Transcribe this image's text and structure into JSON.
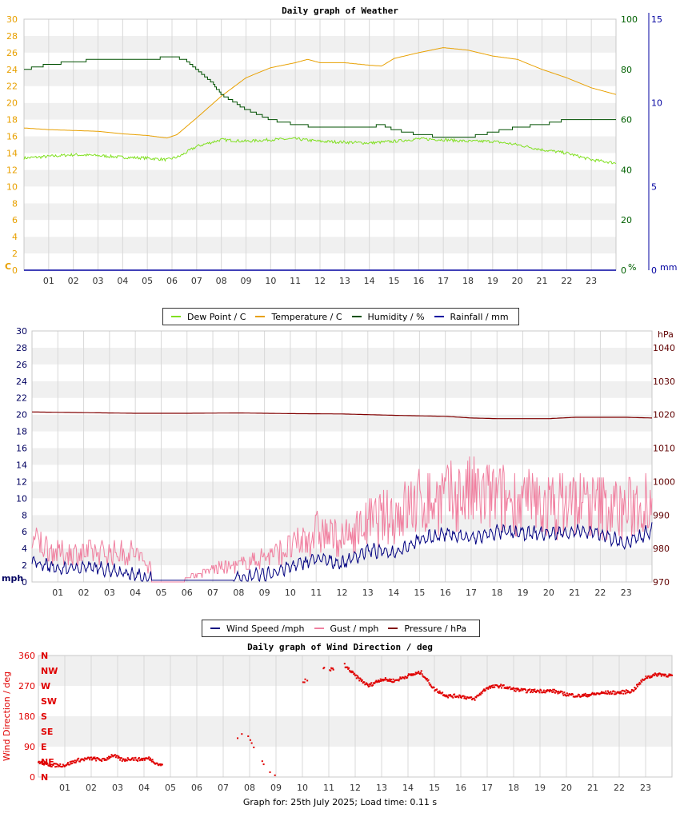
{
  "chart_data": [
    {
      "type": "line",
      "title": "Daily graph of Weather",
      "x_ticks": [
        "01",
        "02",
        "03",
        "04",
        "05",
        "06",
        "07",
        "08",
        "09",
        "10",
        "11",
        "12",
        "13",
        "14",
        "15",
        "16",
        "17",
        "18",
        "19",
        "20",
        "21",
        "22",
        "23"
      ],
      "x_range": [
        0,
        24
      ],
      "left_axis": {
        "unit": "C",
        "ylim": [
          0,
          30
        ],
        "ticks": [
          "0",
          "2",
          "4",
          "6",
          "8",
          "10",
          "12",
          "14",
          "16",
          "18",
          "20",
          "22",
          "24",
          "26",
          "28",
          "30"
        ],
        "color": "#e8a000"
      },
      "right_axis_1": {
        "unit": "%",
        "ylim": [
          0,
          100
        ],
        "ticks": [
          "0",
          "20",
          "40",
          "60",
          "80",
          "100"
        ],
        "color": "#006000"
      },
      "right_axis_2": {
        "unit": "mm",
        "ylim": [
          0,
          15
        ],
        "ticks": [
          "0",
          "5",
          "10",
          "15"
        ],
        "color": "#0000a0"
      },
      "legend": [
        {
          "name": "Dew Point / C",
          "color": "#80e020"
        },
        {
          "name": "Temperature / C",
          "color": "#e8a000"
        },
        {
          "name": "Humidity / %",
          "color": "#005000"
        },
        {
          "name": "Rainfall / mm",
          "color": "#0000a0"
        }
      ],
      "series": [
        {
          "name": "Dew Point / C",
          "axis": "left",
          "x": [
            0,
            1,
            2,
            3,
            4,
            5,
            5.8,
            6.3,
            7,
            8,
            9,
            10,
            11,
            12,
            13,
            14,
            15,
            16,
            17,
            18,
            19,
            20,
            21,
            22,
            23,
            24
          ],
          "values": [
            13.4,
            13.6,
            13.8,
            13.7,
            13.5,
            13.4,
            13.2,
            13.6,
            14.8,
            15.6,
            15.4,
            15.6,
            15.7,
            15.4,
            15.3,
            15.2,
            15.4,
            15.7,
            15.6,
            15.4,
            15.4,
            15.0,
            14.4,
            14.0,
            13.2,
            12.8
          ]
        },
        {
          "name": "Temperature / C",
          "axis": "left",
          "x": [
            0,
            1,
            2,
            3,
            4,
            5,
            5.8,
            6.2,
            7,
            8,
            9,
            10,
            11,
            11.5,
            12,
            13,
            14,
            14.5,
            15,
            16,
            17,
            18,
            19,
            20,
            21,
            22,
            23,
            24
          ],
          "values": [
            17.0,
            16.8,
            16.7,
            16.6,
            16.3,
            16.1,
            15.8,
            16.2,
            18.2,
            20.8,
            23.0,
            24.2,
            24.8,
            25.2,
            24.8,
            24.8,
            24.5,
            24.4,
            25.3,
            26.0,
            26.6,
            26.3,
            25.6,
            25.2,
            24.0,
            23.0,
            21.8,
            21.0
          ]
        },
        {
          "name": "Humidity / %",
          "axis": "right1",
          "x": [
            0,
            1,
            2,
            3,
            4,
            5,
            6,
            6.5,
            7,
            7.5,
            8,
            8.5,
            9,
            9.5,
            10,
            11,
            12,
            13,
            14,
            14.5,
            15,
            15.5,
            16,
            17,
            18,
            18.5,
            19,
            20,
            21,
            22,
            23,
            24
          ],
          "values": [
            80,
            82,
            83,
            84,
            84,
            84,
            85,
            84,
            80,
            76,
            70,
            67,
            64,
            62,
            60,
            58,
            57,
            57,
            57,
            58,
            56,
            55,
            54,
            53,
            53,
            54,
            55,
            57,
            58,
            60,
            60,
            60
          ]
        },
        {
          "name": "Rainfall / mm",
          "axis": "right2",
          "x": [
            0,
            24
          ],
          "values": [
            0,
            0
          ]
        }
      ]
    },
    {
      "type": "line",
      "title": "",
      "x_ticks": [
        "01",
        "02",
        "03",
        "04",
        "05",
        "06",
        "07",
        "08",
        "09",
        "10",
        "11",
        "12",
        "13",
        "14",
        "15",
        "16",
        "17",
        "18",
        "19",
        "20",
        "21",
        "22",
        "23"
      ],
      "x_range": [
        0,
        24
      ],
      "left_axis": {
        "unit": "mph",
        "ylim": [
          0,
          30
        ],
        "ticks": [
          "0",
          "2",
          "4",
          "6",
          "8",
          "10",
          "12",
          "14",
          "16",
          "18",
          "20",
          "22",
          "24",
          "26",
          "28",
          "30"
        ],
        "color": "#000060"
      },
      "right_axis": {
        "unit": "hPa",
        "ylim": [
          970,
          1045
        ],
        "ticks": [
          "970",
          "980",
          "990",
          "1000",
          "1010",
          "1020",
          "1030",
          "1040"
        ],
        "color": "#600000"
      },
      "legend": [
        {
          "name": "Wind Speed /mph",
          "color": "#000080"
        },
        {
          "name": "Gust / mph",
          "color": "#f080a0"
        },
        {
          "name": "Pressure / hPa",
          "color": "#800000"
        }
      ],
      "series": [
        {
          "name": "Wind Speed /mph",
          "axis": "left",
          "x": [
            0,
            1,
            2,
            3,
            4,
            5,
            6,
            7,
            8,
            9,
            10,
            11,
            12,
            13,
            14,
            15,
            16,
            17,
            18,
            19,
            20,
            21,
            22,
            23,
            24
          ],
          "values": [
            2.5,
            1.5,
            1.8,
            1.5,
            0.8,
            0.2,
            0.2,
            0.2,
            0.5,
            0.8,
            1.8,
            2.8,
            2.2,
            3.8,
            3.5,
            5.0,
            5.8,
            5.2,
            6.0,
            5.8,
            5.8,
            6.0,
            5.8,
            4.5,
            6.2
          ]
        },
        {
          "name": "Gust / mph",
          "axis": "left",
          "x": [
            0,
            1,
            2,
            3,
            4,
            5,
            6,
            7,
            8,
            9,
            10,
            11,
            12,
            13,
            14,
            15,
            16,
            17,
            18,
            19,
            20,
            21,
            22,
            23,
            24
          ],
          "values": [
            5,
            3.5,
            3.5,
            3.5,
            3.5,
            0.5,
            0.5,
            1.5,
            2,
            3,
            4,
            6,
            5,
            7,
            8,
            9.5,
            10,
            10.5,
            10,
            9.5,
            9,
            9.5,
            9,
            8.5,
            10.5
          ]
        },
        {
          "name": "Pressure / hPa",
          "axis": "right",
          "x": [
            0,
            2,
            4,
            6,
            8,
            10,
            12,
            14,
            16,
            17,
            18,
            19,
            20,
            21,
            22,
            23,
            24
          ],
          "values": [
            1020.8,
            1020.6,
            1020.4,
            1020.4,
            1020.5,
            1020.3,
            1020.2,
            1019.8,
            1019.5,
            1019.0,
            1018.8,
            1018.8,
            1018.8,
            1019.2,
            1019.2,
            1019.2,
            1019.0
          ]
        }
      ]
    },
    {
      "type": "scatter",
      "title": "Daily graph of Wind Direction / deg",
      "ylabel": "Wind Direction / deg",
      "x_ticks": [
        "01",
        "02",
        "03",
        "04",
        "05",
        "06",
        "07",
        "08",
        "09",
        "10",
        "11",
        "12",
        "13",
        "14",
        "15",
        "16",
        "17",
        "18",
        "19",
        "20",
        "21",
        "22",
        "23"
      ],
      "x_range": [
        0,
        24
      ],
      "ylim": [
        0,
        360
      ],
      "y_ticks": [
        "0",
        "90",
        "180",
        "270",
        "360"
      ],
      "compass_labels": [
        "N",
        "NE",
        "E",
        "SE",
        "S",
        "SW",
        "W",
        "NW",
        "N"
      ],
      "color": "#e00000",
      "series": [
        {
          "name": "Wind Direction",
          "x": [
            0,
            0.5,
            1,
            1.5,
            2,
            2.5,
            2.8,
            3.2,
            3.5,
            3.8,
            4.2,
            4.6,
            7.6,
            7.8,
            8.7,
            8.9,
            9.1,
            10,
            10.8,
            11.2,
            11.5,
            12,
            12.5,
            13,
            13.5,
            14,
            14.5,
            15,
            15.5,
            16,
            16.5,
            17,
            17.5,
            18,
            18.5,
            19,
            19.5,
            20,
            20.5,
            21,
            21.5,
            22,
            22.5,
            23,
            23.5,
            24
          ],
          "values": [
            45,
            35,
            35,
            50,
            55,
            50,
            65,
            50,
            55,
            52,
            55,
            35,
            120,
            140,
            20,
            10,
            5,
            280,
            320,
            320,
            340,
            300,
            270,
            290,
            285,
            300,
            310,
            260,
            240,
            240,
            230,
            265,
            270,
            260,
            255,
            255,
            255,
            245,
            240,
            245,
            250,
            250,
            255,
            295,
            305,
            300
          ]
        }
      ]
    }
  ],
  "footer": "Graph for: 25th July 2025; Load time: 0.11 s"
}
